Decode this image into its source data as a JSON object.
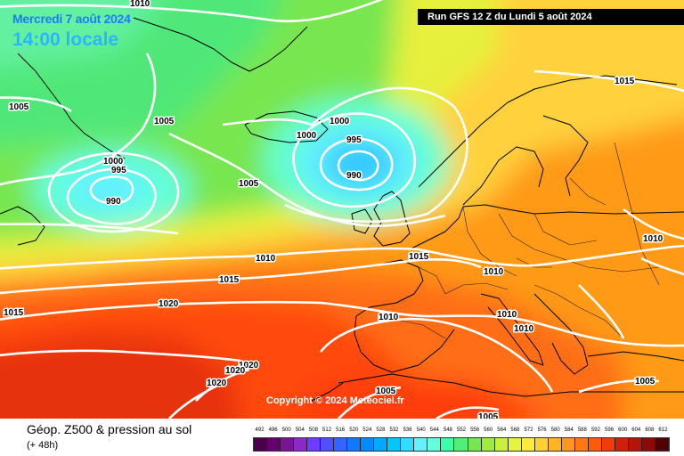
{
  "header": {
    "date": "Mercredi 7 août 2024",
    "time": "14:00 locale",
    "run": "Run GFS 12 Z du Lundi 5 août 2024"
  },
  "copyright": "Copyright © 2024 Meteociel.fr",
  "footer": {
    "title": "Géop. Z500 & pression au sol",
    "subtitle": "(+ 48h)"
  },
  "scale": {
    "values": [
      "492",
      "496",
      "500",
      "504",
      "508",
      "512",
      "516",
      "520",
      "524",
      "528",
      "532",
      "536",
      "540",
      "544",
      "548",
      "552",
      "556",
      "560",
      "564",
      "568",
      "572",
      "576",
      "580",
      "584",
      "588",
      "592",
      "596",
      "600",
      "604",
      "608",
      "612"
    ],
    "colors": [
      "#4a004a",
      "#64006e",
      "#7a1496",
      "#8c28c8",
      "#6e3cff",
      "#5050ff",
      "#3264ff",
      "#1478ff",
      "#008cff",
      "#00aaff",
      "#00c8ff",
      "#32dcff",
      "#64f0ff",
      "#64ffdc",
      "#3cffaa",
      "#50f078",
      "#78e650",
      "#a0eb3c",
      "#c8f03c",
      "#e6f53c",
      "#ffeb3c",
      "#ffd232",
      "#ffb428",
      "#ff961e",
      "#ff7814",
      "#ff5a0a",
      "#f03c0a",
      "#d21e0a",
      "#b4140a",
      "#8c0a0a",
      "#500000"
    ]
  },
  "isobars": [
    {
      "text": "1010",
      "pos": "top"
    },
    {
      "text": "1005",
      "pos": "west"
    },
    {
      "text": "1005",
      "pos": "greenland"
    },
    {
      "text": "1000",
      "pos": "labrador-high"
    },
    {
      "text": "995",
      "pos": "labrador-mid"
    },
    {
      "text": "990",
      "pos": "labrador-low"
    },
    {
      "text": "1000",
      "pos": "iceland-e"
    },
    {
      "text": "1000",
      "pos": "iceland-w"
    },
    {
      "text": "995",
      "pos": "low-ne"
    },
    {
      "text": "990",
      "pos": "low-core"
    },
    {
      "text": "1005",
      "pos": "mid-atlantic"
    },
    {
      "text": "1015",
      "pos": "scandinavia"
    },
    {
      "text": "1010",
      "pos": "russia"
    },
    {
      "text": "1010",
      "pos": "atlantic-center"
    },
    {
      "text": "1015",
      "pos": "uk"
    },
    {
      "text": "1010",
      "pos": "alps"
    },
    {
      "text": "1015",
      "pos": "atlantic-s"
    },
    {
      "text": "1015",
      "pos": "far-west"
    },
    {
      "text": "1020",
      "pos": "azores"
    },
    {
      "text": "1010",
      "pos": "iberia"
    },
    {
      "text": "1010",
      "pos": "italy-n"
    },
    {
      "text": "1010",
      "pos": "italy-s"
    },
    {
      "text": "1020",
      "pos": "azores-s1"
    },
    {
      "text": "1020",
      "pos": "azores-s2"
    },
    {
      "text": "1020",
      "pos": "azores-s3"
    },
    {
      "text": "1005",
      "pos": "sahara-n"
    },
    {
      "text": "1005",
      "pos": "sahara-s"
    },
    {
      "text": "1005",
      "pos": "turkey"
    }
  ]
}
